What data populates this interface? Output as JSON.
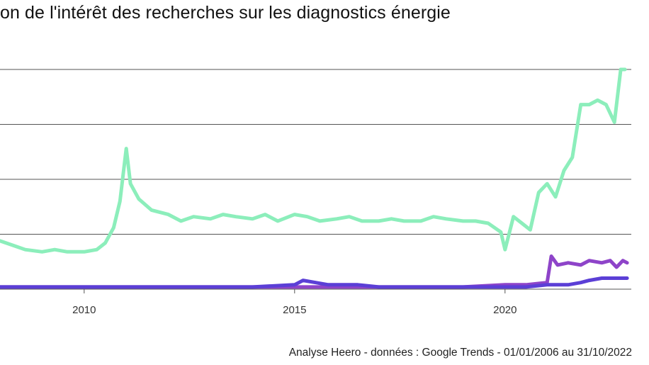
{
  "title": "on de l'intérêt des recherches sur les diagnostics énergie",
  "caption": "Analyse Heero - données : Google Trends - 01/01/2006 au 31/10/2022",
  "chart_data": {
    "type": "line",
    "title": "on de l'intérêt des recherches sur les diagnostics énergie",
    "xlabel": "",
    "ylabel": "",
    "x_ticks": [
      2010,
      2015,
      2020
    ],
    "xlim": [
      2008.0,
      2023.0
    ],
    "ylim": [
      0,
      100
    ],
    "grid": true,
    "series": [
      {
        "color": "#8ceebb",
        "x": [
          2008.0,
          2008.3,
          2008.6,
          2009.0,
          2009.3,
          2009.6,
          2010.0,
          2010.3,
          2010.5,
          2010.7,
          2010.85,
          2011.0,
          2011.1,
          2011.3,
          2011.6,
          2012.0,
          2012.3,
          2012.6,
          2013.0,
          2013.3,
          2013.6,
          2014.0,
          2014.3,
          2014.6,
          2015.0,
          2015.3,
          2015.6,
          2016.0,
          2016.3,
          2016.6,
          2017.0,
          2017.3,
          2017.6,
          2018.0,
          2018.3,
          2018.6,
          2019.0,
          2019.3,
          2019.6,
          2019.9,
          2020.0,
          2020.2,
          2020.4,
          2020.6,
          2020.8,
          2021.0,
          2021.2,
          2021.4,
          2021.6,
          2021.8,
          2022.0,
          2022.2,
          2022.4,
          2022.6,
          2022.75,
          2022.85
        ],
        "y": [
          22,
          20,
          18,
          17,
          18,
          17,
          17,
          18,
          21,
          28,
          40,
          64,
          48,
          41,
          36,
          34,
          31,
          33,
          32,
          34,
          33,
          32,
          34,
          31,
          34,
          33,
          31,
          32,
          33,
          31,
          31,
          32,
          31,
          31,
          33,
          32,
          31,
          31,
          30,
          26,
          18,
          33,
          30,
          27,
          44,
          48,
          42,
          54,
          60,
          84,
          84,
          86,
          84,
          76,
          100,
          100
        ]
      },
      {
        "color": "#8e44c9",
        "x": [
          2008.0,
          2009.0,
          2010.0,
          2011.0,
          2012.0,
          2013.0,
          2014.0,
          2015.0,
          2016.0,
          2017.0,
          2018.0,
          2019.0,
          2020.0,
          2020.5,
          2021.0,
          2021.1,
          2021.25,
          2021.5,
          2021.8,
          2022.0,
          2022.3,
          2022.5,
          2022.65,
          2022.8,
          2022.9
        ],
        "y": [
          1,
          1,
          1,
          1,
          1,
          1,
          1,
          1,
          1,
          1,
          1,
          1,
          2,
          2,
          3,
          15,
          11,
          12,
          11,
          13,
          12,
          13,
          10,
          13,
          12
        ]
      },
      {
        "color": "#5b3fd6",
        "x": [
          2008.0,
          2009.0,
          2010.0,
          2011.0,
          2012.0,
          2013.0,
          2014.0,
          2015.0,
          2015.2,
          2015.5,
          2015.8,
          2016.5,
          2017.0,
          2018.0,
          2019.0,
          2020.0,
          2020.5,
          2021.0,
          2021.5,
          2021.8,
          2022.0,
          2022.3,
          2022.6,
          2022.9
        ],
        "y": [
          1,
          1,
          1,
          1,
          1,
          1,
          1,
          2,
          4,
          3,
          2,
          2,
          1,
          1,
          1,
          1,
          1,
          2,
          2,
          3,
          4,
          5,
          5,
          5
        ]
      }
    ]
  }
}
